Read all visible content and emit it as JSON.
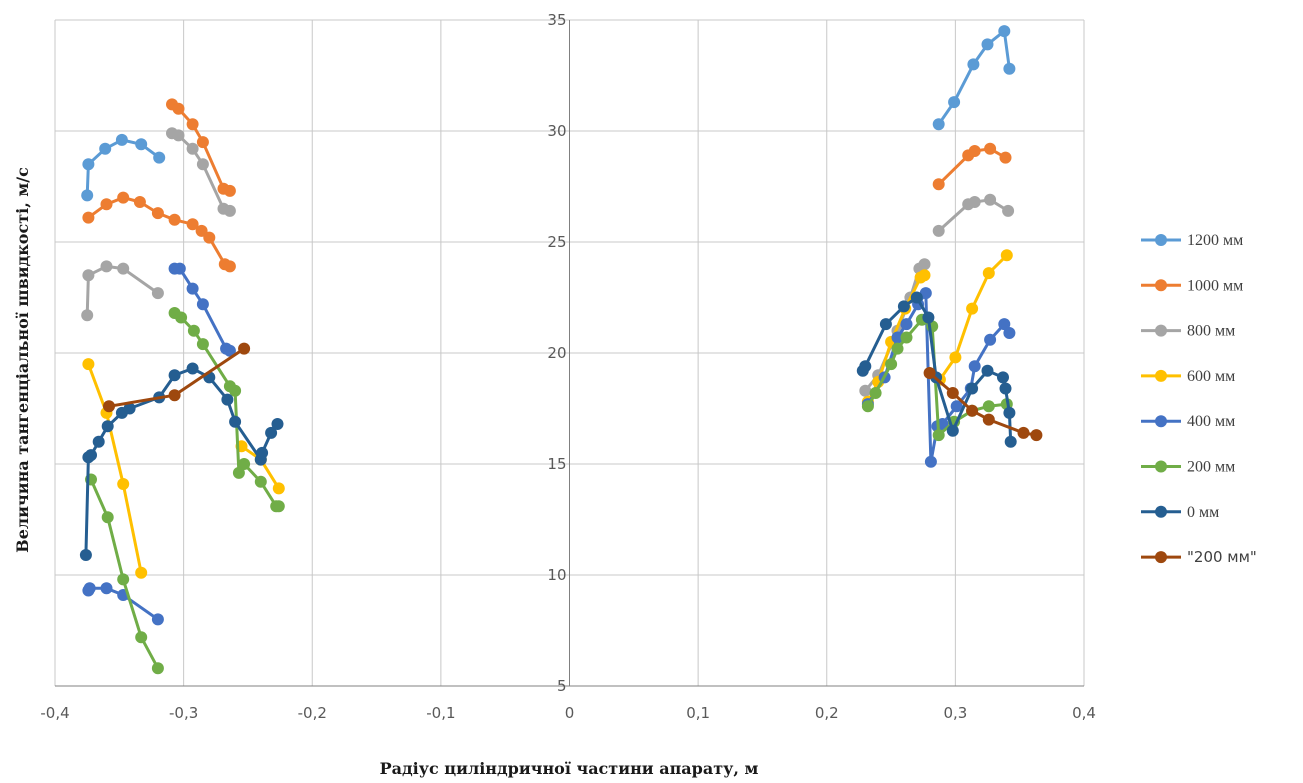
{
  "chart_data": {
    "type": "line",
    "xlabel": "Радіус циліндричної частини апарату, м",
    "ylabel": "Величина тангенціальної швидкості, м/с",
    "xlim": [
      -0.4,
      0.4
    ],
    "ylim": [
      5,
      35
    ],
    "x_ticks": [
      "-0,4",
      "-0,3",
      "-0,2",
      "-0,1",
      "0",
      "0,1",
      "0,2",
      "0,3",
      "0,4"
    ],
    "y_ticks": [
      "5",
      "10",
      "15",
      "20",
      "25",
      "30",
      "35"
    ],
    "grid": true,
    "legend_position": "right",
    "series": [
      {
        "name": "1200 мм",
        "color": "#5B9BD5",
        "segments": [
          [
            [
              -0.375,
              27.1
            ],
            [
              -0.374,
              28.5
            ],
            [
              -0.361,
              29.2
            ],
            [
              -0.348,
              29.6
            ],
            [
              -0.333,
              29.4
            ],
            [
              -0.319,
              28.8
            ]
          ],
          [
            [
              0.287,
              30.3
            ],
            [
              0.299,
              31.3
            ],
            [
              0.314,
              33.0
            ],
            [
              0.325,
              33.9
            ],
            [
              0.338,
              34.5
            ],
            [
              0.342,
              32.8
            ]
          ]
        ]
      },
      {
        "name": "1000 мм",
        "color": "#ED7D31",
        "segments": [
          [
            [
              -0.374,
              26.1
            ],
            [
              -0.36,
              26.7
            ],
            [
              -0.347,
              27.0
            ],
            [
              -0.334,
              26.8
            ],
            [
              -0.32,
              26.3
            ],
            [
              -0.307,
              26.0
            ],
            [
              -0.293,
              25.8
            ],
            [
              -0.286,
              25.5
            ],
            [
              -0.28,
              25.2
            ],
            [
              -0.268,
              24.0
            ],
            [
              -0.264,
              23.9
            ]
          ],
          [
            [
              -0.309,
              31.2
            ],
            [
              -0.304,
              31.0
            ],
            [
              -0.293,
              30.3
            ],
            [
              -0.285,
              29.5
            ],
            [
              -0.269,
              27.4
            ],
            [
              -0.264,
              27.3
            ]
          ],
          [
            [
              0.287,
              27.6
            ],
            [
              0.31,
              28.9
            ],
            [
              0.315,
              29.1
            ],
            [
              0.327,
              29.2
            ],
            [
              0.339,
              28.8
            ]
          ]
        ]
      },
      {
        "name": "800 мм",
        "color": "#A5A5A5",
        "segments": [
          [
            [
              -0.375,
              21.7
            ],
            [
              -0.374,
              23.5
            ],
            [
              -0.36,
              23.9
            ],
            [
              -0.347,
              23.8
            ],
            [
              -0.32,
              22.7
            ]
          ],
          [
            [
              -0.309,
              29.9
            ],
            [
              -0.304,
              29.8
            ],
            [
              -0.293,
              29.2
            ],
            [
              -0.285,
              28.5
            ],
            [
              -0.269,
              26.5
            ],
            [
              -0.264,
              26.4
            ]
          ],
          [
            [
              0.23,
              18.3
            ],
            [
              0.24,
              19.0
            ],
            [
              0.255,
              21.0
            ],
            [
              0.265,
              22.5
            ],
            [
              0.272,
              23.8
            ],
            [
              0.276,
              24.0
            ]
          ],
          [
            [
              0.287,
              25.5
            ],
            [
              0.31,
              26.7
            ],
            [
              0.315,
              26.8
            ],
            [
              0.327,
              26.9
            ],
            [
              0.341,
              26.4
            ]
          ]
        ]
      },
      {
        "name": "600 мм",
        "color": "#FFC000",
        "segments": [
          [
            [
              -0.374,
              19.5
            ],
            [
              -0.36,
              17.3
            ],
            [
              -0.347,
              14.1
            ],
            [
              -0.333,
              10.1
            ]
          ],
          [
            [
              -0.255,
              15.8
            ],
            [
              -0.24,
              15.2
            ],
            [
              -0.226,
              13.9
            ]
          ],
          [
            [
              0.232,
              17.8
            ],
            [
              0.24,
              18.7
            ],
            [
              0.25,
              20.5
            ],
            [
              0.261,
              22.0
            ],
            [
              0.273,
              23.4
            ],
            [
              0.276,
              23.5
            ]
          ],
          [
            [
              0.288,
              18.8
            ],
            [
              0.3,
              19.8
            ],
            [
              0.313,
              22.0
            ],
            [
              0.326,
              23.6
            ],
            [
              0.34,
              24.4
            ]
          ]
        ]
      },
      {
        "name": "400 мм",
        "color": "#4472C4",
        "segments": [
          [
            [
              -0.374,
              9.3
            ],
            [
              -0.373,
              9.4
            ],
            [
              -0.36,
              9.4
            ],
            [
              -0.347,
              9.1
            ],
            [
              -0.32,
              8.0
            ]
          ],
          [
            [
              -0.307,
              23.8
            ],
            [
              -0.303,
              23.8
            ],
            [
              -0.293,
              22.9
            ],
            [
              -0.285,
              22.2
            ],
            [
              -0.267,
              20.2
            ],
            [
              -0.264,
              20.1
            ]
          ],
          [
            [
              0.232,
              17.7
            ],
            [
              0.245,
              18.9
            ],
            [
              0.255,
              20.7
            ],
            [
              0.262,
              21.3
            ],
            [
              0.271,
              22.2
            ],
            [
              0.277,
              22.7
            ],
            [
              0.281,
              15.1
            ],
            [
              0.286,
              16.7
            ],
            [
              0.29,
              16.8
            ],
            [
              0.301,
              17.6
            ],
            [
              0.312,
              18.4
            ],
            [
              0.315,
              19.4
            ],
            [
              0.327,
              20.6
            ],
            [
              0.338,
              21.3
            ],
            [
              0.342,
              20.9
            ]
          ]
        ]
      },
      {
        "name": "200 мм",
        "color": "#70AD47",
        "segments": [
          [
            [
              -0.372,
              14.3
            ],
            [
              -0.359,
              12.6
            ],
            [
              -0.347,
              9.8
            ],
            [
              -0.333,
              7.2
            ],
            [
              -0.32,
              5.8
            ]
          ],
          [
            [
              -0.307,
              21.8
            ],
            [
              -0.302,
              21.6
            ],
            [
              -0.292,
              21.0
            ],
            [
              -0.285,
              20.4
            ],
            [
              -0.264,
              18.5
            ],
            [
              -0.26,
              18.3
            ],
            [
              -0.257,
              14.6
            ],
            [
              -0.253,
              15.0
            ],
            [
              -0.24,
              14.2
            ],
            [
              -0.228,
              13.1
            ],
            [
              -0.226,
              13.1
            ]
          ],
          [
            [
              0.232,
              17.6
            ],
            [
              0.238,
              18.2
            ],
            [
              0.25,
              19.5
            ],
            [
              0.255,
              20.2
            ],
            [
              0.262,
              20.7
            ],
            [
              0.274,
              21.5
            ],
            [
              0.282,
              21.2
            ],
            [
              0.287,
              16.3
            ],
            [
              0.299,
              16.9
            ],
            [
              0.313,
              17.4
            ],
            [
              0.326,
              17.6
            ],
            [
              0.34,
              17.7
            ]
          ]
        ]
      },
      {
        "name": "0 мм",
        "color": "#255E91",
        "segments": [
          [
            [
              -0.376,
              10.9
            ],
            [
              -0.374,
              15.3
            ],
            [
              -0.372,
              15.4
            ],
            [
              -0.366,
              16.0
            ],
            [
              -0.359,
              16.7
            ],
            [
              -0.348,
              17.3
            ],
            [
              -0.342,
              17.5
            ],
            [
              -0.319,
              18.0
            ],
            [
              -0.307,
              19.0
            ],
            [
              -0.293,
              19.3
            ],
            [
              -0.28,
              18.9
            ],
            [
              -0.266,
              17.9
            ],
            [
              -0.26,
              16.9
            ],
            [
              -0.24,
              15.2
            ],
            [
              -0.239,
              15.5
            ],
            [
              -0.232,
              16.4
            ],
            [
              -0.227,
              16.8
            ]
          ],
          [
            [
              0.228,
              19.2
            ],
            [
              0.23,
              19.4
            ],
            [
              0.246,
              21.3
            ],
            [
              0.26,
              22.1
            ],
            [
              0.27,
              22.5
            ],
            [
              0.279,
              21.6
            ],
            [
              0.285,
              18.9
            ],
            [
              0.298,
              16.5
            ],
            [
              0.313,
              18.4
            ],
            [
              0.325,
              19.2
            ],
            [
              0.337,
              18.9
            ],
            [
              0.339,
              18.4
            ],
            [
              0.342,
              17.3
            ],
            [
              0.343,
              16.0
            ]
          ]
        ]
      },
      {
        "name": "\"200 мм\"",
        "color": "#9E480E",
        "segments": [
          [
            [
              -0.358,
              17.6
            ],
            [
              -0.307,
              18.1
            ],
            [
              -0.253,
              20.2
            ]
          ],
          [
            [
              0.28,
              19.1
            ],
            [
              0.298,
              18.2
            ],
            [
              0.313,
              17.4
            ],
            [
              0.326,
              17.0
            ],
            [
              0.353,
              16.4
            ],
            [
              0.363,
              16.3
            ]
          ]
        ]
      }
    ]
  }
}
